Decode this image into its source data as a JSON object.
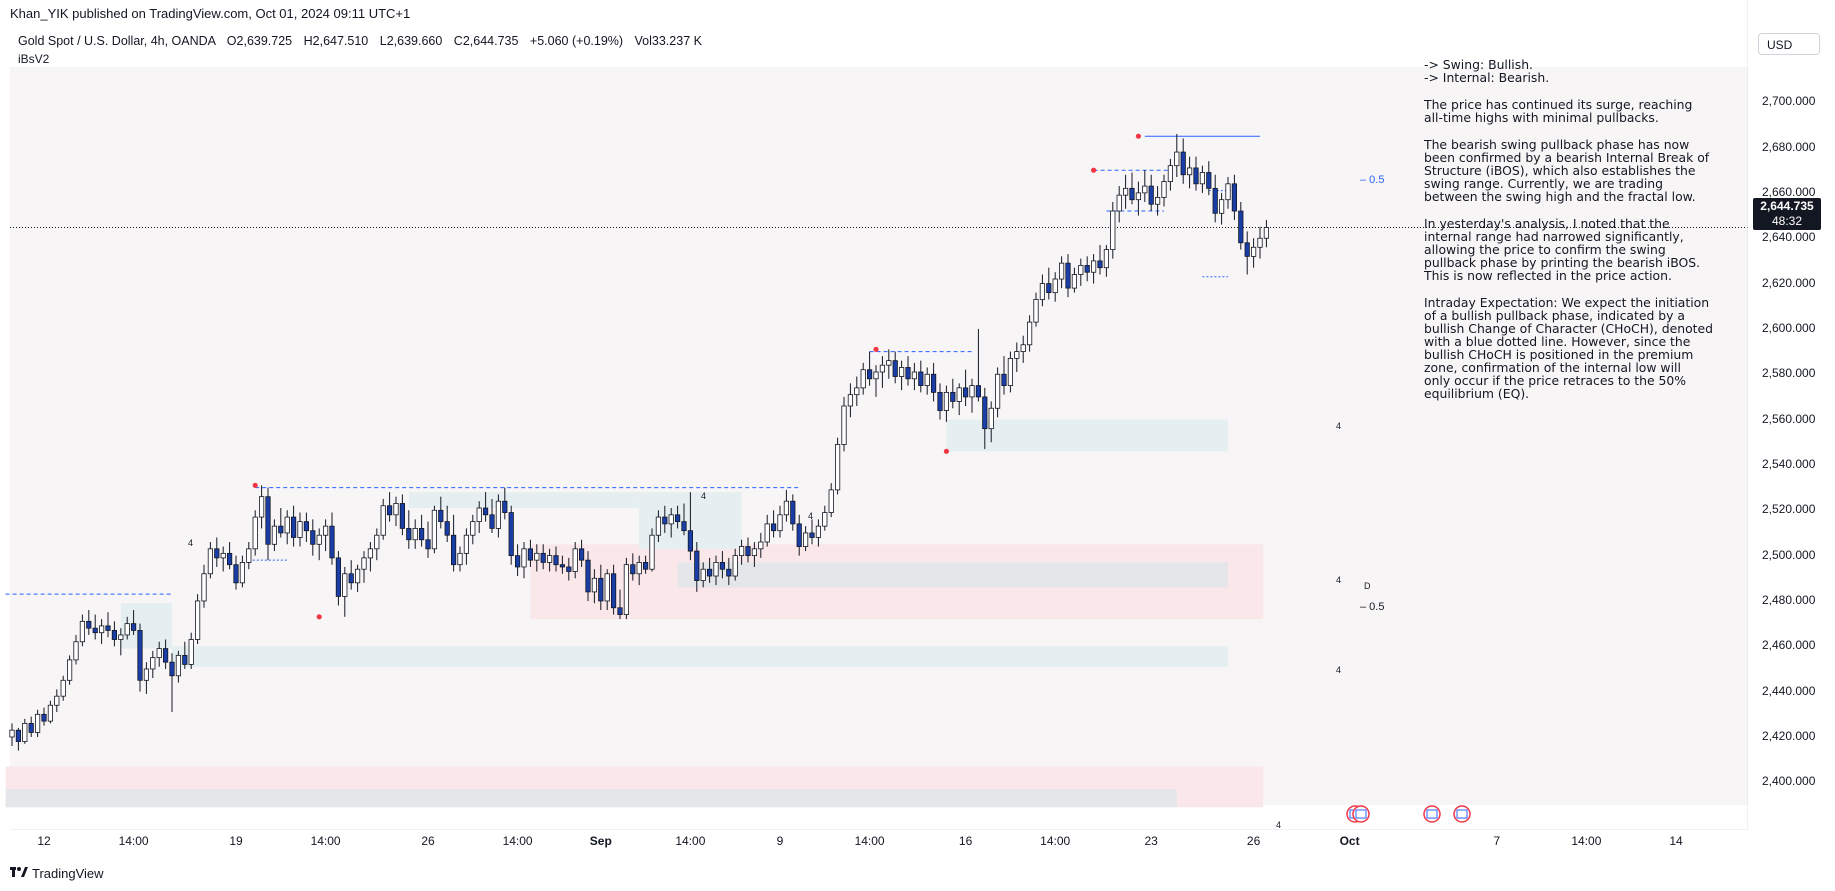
{
  "header": {
    "published_by": "Khan_YIK published on TradingView.com, Oct 01, 2024 09:11 UTC+1",
    "symbol": "Gold Spot / U.S. Dollar, 4h, OANDA",
    "open": "O2,639.725",
    "high": "H2,647.510",
    "low": "L2,639.660",
    "close": "C2,644.735",
    "change": "+5.060 (+0.19%)",
    "volume": "Vol33.237 K",
    "indicator": "iBsV2"
  },
  "currency_button": "USD",
  "price_tag": {
    "price": "2,644.735",
    "countdown": "48:32"
  },
  "footer": {
    "brand": "TradingView",
    "logo_icon": "tradingview-logo-icon"
  },
  "notes": {
    "swing": "-> Swing:  Bullish.",
    "internal": "-> Internal:  Bearish.",
    "p1": [
      "The price has continued its surge, reaching",
      "all-time highs with minimal pullbacks."
    ],
    "p2": [
      "The bearish swing pullback phase has now",
      "been confirmed by a bearish Internal Break of",
      "Structure (iBOS), which also establishes the",
      "swing range. Currently, we are trading",
      "between the swing high and the fractal low."
    ],
    "p3": [
      "In yesterday's analysis, I noted that the",
      "internal range had narrowed significantly,",
      "allowing the price to confirm the swing",
      "pullback phase by printing the bearish iBOS.",
      "This is now reflected in the price action."
    ],
    "p4": [
      "Intraday Expectation: We expect the initiation",
      "of a bullish pullback phase, indicated by a",
      "bullish Change of Character (CHoCH), denoted",
      "with a blue dotted line. However, since the",
      "bullish CHoCH is positioned in the premium",
      "zone, confirmation of the internal low will",
      "only occur if the price retraces to the 50%",
      "equilibrium (EQ)."
    ]
  },
  "chart_data": {
    "type": "candlestick",
    "title": "",
    "ylim": [
      2390,
      2712
    ],
    "y_ticks": [
      2400,
      2420,
      2440,
      2460,
      2480,
      2500,
      2520,
      2540,
      2560,
      2580,
      2600,
      2620,
      2640,
      2660,
      2680,
      2700
    ],
    "y_tick_labels": [
      "2,400.000",
      "2,420.000",
      "2,440.000",
      "2,460.000",
      "2,480.000",
      "2,500.000",
      "2,520.000",
      "2,540.000",
      "2,560.000",
      "2,580.000",
      "2,600.000",
      "2,620.000",
      "2,640.000",
      "2,660.000",
      "2,680.000",
      "2,700.000"
    ],
    "x_tick_labels": [
      {
        "label": "12",
        "bar": 5,
        "bold": false
      },
      {
        "label": "14:00",
        "bar": 19,
        "bold": false
      },
      {
        "label": "19",
        "bar": 35,
        "bold": false
      },
      {
        "label": "14:00",
        "bar": 49,
        "bold": false
      },
      {
        "label": "26",
        "bar": 65,
        "bold": false
      },
      {
        "label": "14:00",
        "bar": 79,
        "bold": false
      },
      {
        "label": "Sep",
        "bar": 92,
        "bold": true
      },
      {
        "label": "14:00",
        "bar": 106,
        "bold": false
      },
      {
        "label": "9",
        "bar": 120,
        "bold": false
      },
      {
        "label": "14:00",
        "bar": 134,
        "bold": false
      },
      {
        "label": "16",
        "bar": 149,
        "bold": false
      },
      {
        "label": "14:00",
        "bar": 163,
        "bold": false
      },
      {
        "label": "23",
        "bar": 178,
        "bold": false
      },
      {
        "label": "26",
        "bar": 194,
        "bold": false
      },
      {
        "label": "Oct",
        "bar": 209,
        "bold": true
      },
      {
        "label": "7",
        "bar": 232,
        "bold": false
      },
      {
        "label": "14:00",
        "bar": 246,
        "bold": false
      },
      {
        "label": "14",
        "bar": 260,
        "bold": false
      }
    ],
    "last_price": 2644.735,
    "zone_labels": [
      "4",
      "4",
      "4",
      "4",
      "4",
      "4",
      "4",
      "D"
    ],
    "eq_labels": [
      "0.5",
      "0.5"
    ],
    "ohlc": [
      [
        2420,
        2426,
        2416,
        2423
      ],
      [
        2423,
        2424,
        2414,
        2418
      ],
      [
        2418,
        2428,
        2417,
        2426
      ],
      [
        2426,
        2429,
        2420,
        2422
      ],
      [
        2422,
        2432,
        2420,
        2430
      ],
      [
        2430,
        2433,
        2425,
        2427
      ],
      [
        2427,
        2436,
        2426,
        2434
      ],
      [
        2434,
        2441,
        2431,
        2438
      ],
      [
        2438,
        2447,
        2436,
        2445
      ],
      [
        2445,
        2456,
        2443,
        2454
      ],
      [
        2454,
        2465,
        2452,
        2462
      ],
      [
        2462,
        2474,
        2460,
        2471
      ],
      [
        2471,
        2476,
        2465,
        2468
      ],
      [
        2468,
        2474,
        2463,
        2466
      ],
      [
        2466,
        2472,
        2461,
        2469
      ],
      [
        2469,
        2475,
        2464,
        2467
      ],
      [
        2467,
        2471,
        2460,
        2463
      ],
      [
        2463,
        2468,
        2456,
        2465
      ],
      [
        2465,
        2473,
        2463,
        2470
      ],
      [
        2470,
        2476,
        2465,
        2467
      ],
      [
        2467,
        2470,
        2440,
        2445
      ],
      [
        2445,
        2453,
        2439,
        2450
      ],
      [
        2450,
        2458,
        2446,
        2455
      ],
      [
        2455,
        2462,
        2451,
        2459
      ],
      [
        2459,
        2463,
        2450,
        2453
      ],
      [
        2453,
        2457,
        2431,
        2447
      ],
      [
        2447,
        2458,
        2444,
        2456
      ],
      [
        2456,
        2462,
        2450,
        2452
      ],
      [
        2452,
        2466,
        2450,
        2463
      ],
      [
        2463,
        2483,
        2461,
        2480
      ],
      [
        2480,
        2496,
        2477,
        2492
      ],
      [
        2492,
        2506,
        2490,
        2503
      ],
      [
        2503,
        2508,
        2495,
        2499
      ],
      [
        2499,
        2504,
        2493,
        2501
      ],
      [
        2501,
        2506,
        2494,
        2496
      ],
      [
        2496,
        2500,
        2485,
        2488
      ],
      [
        2488,
        2500,
        2486,
        2497
      ],
      [
        2497,
        2506,
        2494,
        2503
      ],
      [
        2503,
        2520,
        2500,
        2517
      ],
      [
        2517,
        2531,
        2512,
        2526
      ],
      [
        2526,
        2530,
        2498,
        2505
      ],
      [
        2505,
        2516,
        2502,
        2513
      ],
      [
        2513,
        2521,
        2508,
        2510
      ],
      [
        2510,
        2520,
        2505,
        2517
      ],
      [
        2517,
        2522,
        2504,
        2508
      ],
      [
        2508,
        2519,
        2504,
        2515
      ],
      [
        2515,
        2519,
        2506,
        2511
      ],
      [
        2511,
        2516,
        2500,
        2505
      ],
      [
        2505,
        2512,
        2498,
        2509
      ],
      [
        2509,
        2516,
        2502,
        2513
      ],
      [
        2513,
        2519,
        2496,
        2499
      ],
      [
        2499,
        2502,
        2478,
        2482
      ],
      [
        2482,
        2495,
        2473,
        2492
      ],
      [
        2492,
        2498,
        2485,
        2488
      ],
      [
        2488,
        2496,
        2484,
        2494
      ],
      [
        2494,
        2502,
        2488,
        2499
      ],
      [
        2499,
        2506,
        2493,
        2503
      ],
      [
        2503,
        2512,
        2498,
        2509
      ],
      [
        2509,
        2525,
        2507,
        2522
      ],
      [
        2522,
        2528,
        2515,
        2518
      ],
      [
        2518,
        2526,
        2513,
        2523
      ],
      [
        2523,
        2527,
        2509,
        2512
      ],
      [
        2512,
        2520,
        2503,
        2507
      ],
      [
        2507,
        2516,
        2503,
        2512
      ],
      [
        2512,
        2518,
        2504,
        2507
      ],
      [
        2507,
        2515,
        2499,
        2503
      ],
      [
        2503,
        2522,
        2501,
        2520
      ],
      [
        2520,
        2526,
        2512,
        2515
      ],
      [
        2515,
        2522,
        2506,
        2509
      ],
      [
        2509,
        2518,
        2493,
        2496
      ],
      [
        2496,
        2504,
        2493,
        2501
      ],
      [
        2501,
        2512,
        2496,
        2509
      ],
      [
        2509,
        2518,
        2505,
        2515
      ],
      [
        2515,
        2524,
        2510,
        2521
      ],
      [
        2521,
        2528,
        2515,
        2518
      ],
      [
        2518,
        2525,
        2510,
        2512
      ],
      [
        2512,
        2527,
        2508,
        2524
      ],
      [
        2524,
        2530,
        2516,
        2519
      ],
      [
        2519,
        2522,
        2496,
        2500
      ],
      [
        2500,
        2505,
        2491,
        2495
      ],
      [
        2495,
        2506,
        2490,
        2503
      ],
      [
        2503,
        2507,
        2495,
        2498
      ],
      [
        2498,
        2505,
        2493,
        2501
      ],
      [
        2501,
        2505,
        2494,
        2497
      ],
      [
        2497,
        2503,
        2493,
        2500
      ],
      [
        2500,
        2504,
        2493,
        2496
      ],
      [
        2496,
        2500,
        2492,
        2495
      ],
      [
        2495,
        2499,
        2489,
        2493
      ],
      [
        2493,
        2506,
        2490,
        2503
      ],
      [
        2503,
        2507,
        2495,
        2498
      ],
      [
        2498,
        2502,
        2480,
        2484
      ],
      [
        2484,
        2494,
        2479,
        2490
      ],
      [
        2490,
        2496,
        2476,
        2480
      ],
      [
        2480,
        2494,
        2476,
        2492
      ],
      [
        2492,
        2496,
        2474,
        2477
      ],
      [
        2477,
        2485,
        2472,
        2474
      ],
      [
        2474,
        2499,
        2472,
        2496
      ],
      [
        2496,
        2501,
        2489,
        2492
      ],
      [
        2492,
        2500,
        2487,
        2497
      ],
      [
        2497,
        2500,
        2492,
        2494
      ],
      [
        2494,
        2512,
        2493,
        2509
      ],
      [
        2509,
        2520,
        2506,
        2517
      ],
      [
        2517,
        2522,
        2510,
        2514
      ],
      [
        2514,
        2521,
        2508,
        2518
      ],
      [
        2518,
        2522,
        2512,
        2515
      ],
      [
        2515,
        2523,
        2509,
        2511
      ],
      [
        2511,
        2528,
        2498,
        2502
      ],
      [
        2502,
        2506,
        2484,
        2489
      ],
      [
        2489,
        2497,
        2486,
        2494
      ],
      [
        2494,
        2499,
        2488,
        2491
      ],
      [
        2491,
        2500,
        2487,
        2497
      ],
      [
        2497,
        2502,
        2490,
        2494
      ],
      [
        2494,
        2499,
        2487,
        2491
      ],
      [
        2491,
        2503,
        2489,
        2500
      ],
      [
        2500,
        2507,
        2496,
        2504
      ],
      [
        2504,
        2508,
        2497,
        2500
      ],
      [
        2500,
        2506,
        2495,
        2503
      ],
      [
        2503,
        2510,
        2499,
        2506
      ],
      [
        2506,
        2518,
        2504,
        2514
      ],
      [
        2514,
        2520,
        2508,
        2511
      ],
      [
        2511,
        2522,
        2508,
        2518
      ],
      [
        2518,
        2529,
        2515,
        2524
      ],
      [
        2524,
        2527,
        2511,
        2514
      ],
      [
        2514,
        2518,
        2500,
        2504
      ],
      [
        2504,
        2513,
        2502,
        2510
      ],
      [
        2510,
        2516,
        2505,
        2508
      ],
      [
        2508,
        2516,
        2504,
        2513
      ],
      [
        2513,
        2522,
        2511,
        2519
      ],
      [
        2519,
        2532,
        2517,
        2529
      ],
      [
        2529,
        2552,
        2527,
        2549
      ],
      [
        2549,
        2570,
        2546,
        2566
      ],
      [
        2566,
        2576,
        2561,
        2571
      ],
      [
        2571,
        2579,
        2566,
        2574
      ],
      [
        2574,
        2585,
        2571,
        2582
      ],
      [
        2582,
        2590,
        2575,
        2578
      ],
      [
        2578,
        2584,
        2570,
        2581
      ],
      [
        2581,
        2588,
        2574,
        2584
      ],
      [
        2584,
        2591,
        2578,
        2586
      ],
      [
        2586,
        2590,
        2576,
        2579
      ],
      [
        2579,
        2586,
        2573,
        2583
      ],
      [
        2583,
        2588,
        2575,
        2578
      ],
      [
        2578,
        2585,
        2573,
        2581
      ],
      [
        2581,
        2586,
        2572,
        2575
      ],
      [
        2575,
        2583,
        2571,
        2580
      ],
      [
        2580,
        2585,
        2568,
        2572
      ],
      [
        2572,
        2576,
        2560,
        2564
      ],
      [
        2564,
        2575,
        2559,
        2572
      ],
      [
        2572,
        2578,
        2565,
        2568
      ],
      [
        2568,
        2576,
        2562,
        2574
      ],
      [
        2574,
        2582,
        2566,
        2570
      ],
      [
        2570,
        2578,
        2563,
        2575
      ],
      [
        2575,
        2600,
        2568,
        2570
      ],
      [
        2570,
        2574,
        2547,
        2556
      ],
      [
        2556,
        2568,
        2550,
        2565
      ],
      [
        2565,
        2583,
        2561,
        2580
      ],
      [
        2580,
        2588,
        2571,
        2575
      ],
      [
        2575,
        2590,
        2572,
        2587
      ],
      [
        2587,
        2594,
        2581,
        2590
      ],
      [
        2590,
        2597,
        2585,
        2593
      ],
      [
        2593,
        2606,
        2590,
        2603
      ],
      [
        2603,
        2616,
        2601,
        2613
      ],
      [
        2613,
        2624,
        2610,
        2620
      ],
      [
        2620,
        2627,
        2613,
        2616
      ],
      [
        2616,
        2625,
        2612,
        2622
      ],
      [
        2622,
        2632,
        2618,
        2629
      ],
      [
        2629,
        2633,
        2614,
        2618
      ],
      [
        2618,
        2627,
        2616,
        2624
      ],
      [
        2624,
        2631,
        2619,
        2628
      ],
      [
        2628,
        2632,
        2621,
        2625
      ],
      [
        2625,
        2633,
        2620,
        2630
      ],
      [
        2630,
        2637,
        2624,
        2627
      ],
      [
        2627,
        2637,
        2623,
        2635
      ],
      [
        2635,
        2656,
        2631,
        2652
      ],
      [
        2652,
        2663,
        2647,
        2659
      ],
      [
        2659,
        2668,
        2653,
        2662
      ],
      [
        2662,
        2669,
        2655,
        2657
      ],
      [
        2657,
        2665,
        2650,
        2660
      ],
      [
        2660,
        2670,
        2656,
        2663
      ],
      [
        2663,
        2668,
        2652,
        2655
      ],
      [
        2655,
        2663,
        2650,
        2658
      ],
      [
        2658,
        2668,
        2654,
        2665
      ],
      [
        2665,
        2675,
        2661,
        2672
      ],
      [
        2672,
        2686,
        2667,
        2678
      ],
      [
        2678,
        2684,
        2664,
        2668
      ],
      [
        2668,
        2676,
        2662,
        2671
      ],
      [
        2671,
        2676,
        2661,
        2664
      ],
      [
        2664,
        2672,
        2660,
        2669
      ],
      [
        2669,
        2674,
        2659,
        2662
      ],
      [
        2662,
        2668,
        2647,
        2651
      ],
      [
        2651,
        2660,
        2646,
        2657
      ],
      [
        2657,
        2667,
        2653,
        2664
      ],
      [
        2664,
        2668,
        2648,
        2652
      ],
      [
        2652,
        2656,
        2635,
        2638
      ],
      [
        2638,
        2643,
        2624,
        2632
      ],
      [
        2632,
        2640,
        2627,
        2636
      ],
      [
        2636,
        2645,
        2631,
        2640
      ],
      [
        2640,
        2648,
        2636,
        2644.735
      ]
    ]
  }
}
